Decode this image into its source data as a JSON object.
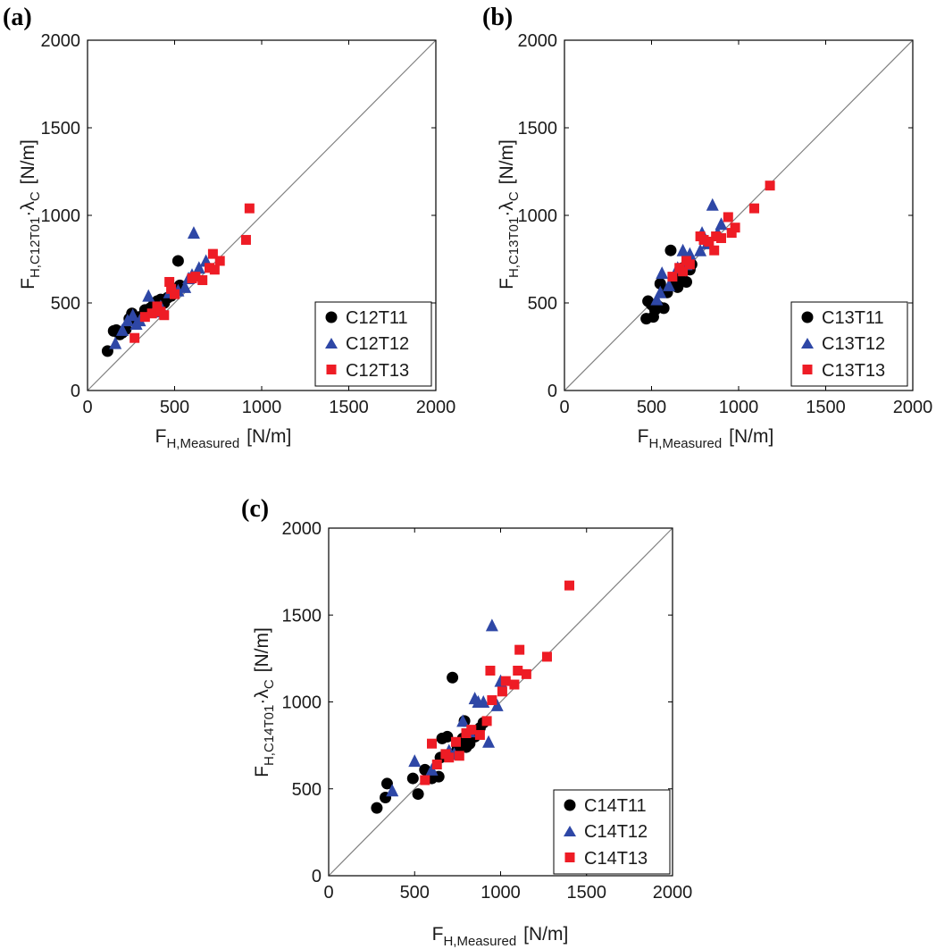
{
  "colors": {
    "C11": "#000000",
    "C12": "#2e47a6",
    "C13": "#ee1c25",
    "frame": "#000000",
    "diagonal": "#808080"
  },
  "chart_data": [
    {
      "type": "scatter",
      "panel_label": "(a)",
      "xlabel_main": "F",
      "xlabel_sub": "H,Measured",
      "xlabel_unit": "[N/m]",
      "ylabel_main": "F",
      "ylabel_sub": "H,C12T01",
      "ylabel_mid": "·λ",
      "ylabel_sub2": "C",
      "ylabel_unit": "[N/m]",
      "xlim": [
        0,
        2000
      ],
      "ylim": [
        0,
        2000
      ],
      "xticks": [
        "0",
        "500",
        "1000",
        "1500",
        "2000"
      ],
      "yticks": [
        "0",
        "500",
        "1000",
        "1500",
        "2000"
      ],
      "legend_position": "lower-right",
      "reference_line": "y = x",
      "series": [
        {
          "name": "C12T11",
          "marker": "circle",
          "color_key": "C11",
          "points": [
            [
              115,
              225
            ],
            [
              150,
              340
            ],
            [
              165,
              345
            ],
            [
              185,
              320
            ],
            [
              200,
              330
            ],
            [
              220,
              350
            ],
            [
              240,
              410
            ],
            [
              255,
              440
            ],
            [
              270,
              395
            ],
            [
              300,
              420
            ],
            [
              330,
              460
            ],
            [
              360,
              470
            ],
            [
              380,
              490
            ],
            [
              400,
              510
            ],
            [
              420,
              520
            ],
            [
              440,
              500
            ],
            [
              460,
              530
            ],
            [
              480,
              540
            ],
            [
              500,
              560
            ],
            [
              520,
              740
            ],
            [
              530,
              600
            ]
          ]
        },
        {
          "name": "C12T12",
          "marker": "triangle",
          "color_key": "C12",
          "points": [
            [
              160,
              270
            ],
            [
              200,
              345
            ],
            [
              230,
              400
            ],
            [
              260,
              430
            ],
            [
              280,
              380
            ],
            [
              300,
              400
            ],
            [
              350,
              540
            ],
            [
              380,
              450
            ],
            [
              420,
              480
            ],
            [
              470,
              560
            ],
            [
              520,
              570
            ],
            [
              560,
              590
            ],
            [
              580,
              640
            ],
            [
              600,
              660
            ],
            [
              610,
              900
            ],
            [
              640,
              700
            ],
            [
              680,
              740
            ]
          ]
        },
        {
          "name": "C12T13",
          "marker": "square",
          "color_key": "C13",
          "points": [
            [
              270,
              300
            ],
            [
              330,
              420
            ],
            [
              370,
              440
            ],
            [
              400,
              480
            ],
            [
              420,
              450
            ],
            [
              440,
              430
            ],
            [
              470,
              620
            ],
            [
              480,
              580
            ],
            [
              500,
              550
            ],
            [
              600,
              640
            ],
            [
              620,
              650
            ],
            [
              660,
              630
            ],
            [
              700,
              700
            ],
            [
              720,
              780
            ],
            [
              730,
              690
            ],
            [
              760,
              740
            ],
            [
              910,
              860
            ],
            [
              930,
              1040
            ]
          ]
        }
      ]
    },
    {
      "type": "scatter",
      "panel_label": "(b)",
      "xlabel_main": "F",
      "xlabel_sub": "H,Measured",
      "xlabel_unit": "[N/m]",
      "ylabel_main": "F",
      "ylabel_sub": "H,C13T01",
      "ylabel_mid": "·λ",
      "ylabel_sub2": "C",
      "ylabel_unit": "[N/m]",
      "xlim": [
        0,
        2000
      ],
      "ylim": [
        0,
        2000
      ],
      "xticks": [
        "0",
        "500",
        "1000",
        "1500",
        "2000"
      ],
      "yticks": [
        "0",
        "500",
        "1000",
        "1500",
        "2000"
      ],
      "legend_position": "lower-right",
      "reference_line": "y = x",
      "series": [
        {
          "name": "C13T11",
          "marker": "circle",
          "color_key": "C11",
          "points": [
            [
              470,
              410
            ],
            [
              480,
              510
            ],
            [
              500,
              490
            ],
            [
              510,
              420
            ],
            [
              520,
              460
            ],
            [
              540,
              480
            ],
            [
              550,
              610
            ],
            [
              570,
              470
            ],
            [
              590,
              560
            ],
            [
              610,
              800
            ],
            [
              630,
              600
            ],
            [
              650,
              590
            ],
            [
              660,
              650
            ],
            [
              680,
              700
            ],
            [
              700,
              620
            ],
            [
              720,
              690
            ],
            [
              730,
              720
            ]
          ]
        },
        {
          "name": "C13T12",
          "marker": "triangle",
          "color_key": "C12",
          "points": [
            [
              530,
              520
            ],
            [
              550,
              560
            ],
            [
              560,
              670
            ],
            [
              600,
              600
            ],
            [
              650,
              700
            ],
            [
              680,
              800
            ],
            [
              700,
              720
            ],
            [
              720,
              780
            ],
            [
              780,
              800
            ],
            [
              790,
              900
            ],
            [
              820,
              840
            ],
            [
              850,
              1060
            ],
            [
              880,
              900
            ],
            [
              900,
              950
            ]
          ]
        },
        {
          "name": "C13T13",
          "marker": "square",
          "color_key": "C13",
          "points": [
            [
              620,
              650
            ],
            [
              660,
              700
            ],
            [
              680,
              680
            ],
            [
              700,
              740
            ],
            [
              720,
              720
            ],
            [
              780,
              880
            ],
            [
              800,
              860
            ],
            [
              830,
              850
            ],
            [
              860,
              800
            ],
            [
              870,
              880
            ],
            [
              900,
              870
            ],
            [
              940,
              990
            ],
            [
              960,
              900
            ],
            [
              980,
              930
            ],
            [
              1090,
              1040
            ],
            [
              1180,
              1170
            ]
          ]
        }
      ]
    },
    {
      "type": "scatter",
      "panel_label": "(c)",
      "xlabel_main": "F",
      "xlabel_sub": "H,Measured",
      "xlabel_unit": "[N/m]",
      "ylabel_main": "F",
      "ylabel_sub": "H,C14T01",
      "ylabel_mid": "·λ",
      "ylabel_sub2": "C",
      "ylabel_unit": "[N/m]",
      "xlim": [
        0,
        2000
      ],
      "ylim": [
        0,
        2000
      ],
      "xticks": [
        "0",
        "500",
        "1000",
        "1500",
        "2000"
      ],
      "yticks": [
        "0",
        "500",
        "1000",
        "1500",
        "2000"
      ],
      "legend_position": "lower-right",
      "reference_line": "y = x",
      "series": [
        {
          "name": "C14T11",
          "marker": "circle",
          "color_key": "C11",
          "points": [
            [
              280,
              390
            ],
            [
              330,
              450
            ],
            [
              340,
              530
            ],
            [
              490,
              560
            ],
            [
              520,
              470
            ],
            [
              560,
              610
            ],
            [
              600,
              560
            ],
            [
              640,
              570
            ],
            [
              650,
              680
            ],
            [
              660,
              790
            ],
            [
              690,
              800
            ],
            [
              710,
              700
            ],
            [
              720,
              1140
            ],
            [
              750,
              740
            ],
            [
              780,
              790
            ],
            [
              790,
              890
            ],
            [
              800,
              740
            ],
            [
              820,
              760
            ],
            [
              850,
              800
            ],
            [
              880,
              850
            ],
            [
              900,
              880
            ]
          ]
        },
        {
          "name": "C14T12",
          "marker": "triangle",
          "color_key": "C12",
          "points": [
            [
              370,
              490
            ],
            [
              500,
              660
            ],
            [
              600,
              610
            ],
            [
              700,
              720
            ],
            [
              730,
              700
            ],
            [
              780,
              890
            ],
            [
              820,
              830
            ],
            [
              850,
              1020
            ],
            [
              870,
              1000
            ],
            [
              900,
              1000
            ],
            [
              930,
              770
            ],
            [
              950,
              1440
            ],
            [
              980,
              980
            ],
            [
              1000,
              1120
            ]
          ]
        },
        {
          "name": "C14T13",
          "marker": "square",
          "color_key": "C13",
          "points": [
            [
              560,
              550
            ],
            [
              600,
              760
            ],
            [
              630,
              640
            ],
            [
              680,
              700
            ],
            [
              700,
              680
            ],
            [
              740,
              770
            ],
            [
              760,
              690
            ],
            [
              800,
              820
            ],
            [
              830,
              840
            ],
            [
              880,
              810
            ],
            [
              920,
              890
            ],
            [
              940,
              1180
            ],
            [
              950,
              1010
            ],
            [
              1010,
              1060
            ],
            [
              1030,
              1120
            ],
            [
              1080,
              1100
            ],
            [
              1100,
              1180
            ],
            [
              1110,
              1300
            ],
            [
              1150,
              1160
            ],
            [
              1270,
              1260
            ],
            [
              1400,
              1670
            ]
          ]
        }
      ]
    }
  ]
}
